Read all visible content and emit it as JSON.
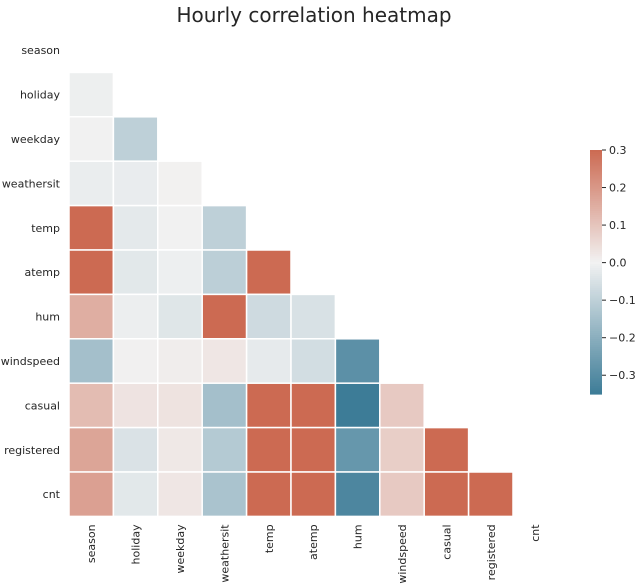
{
  "chart_data": {
    "type": "heatmap",
    "title": "Hourly correlation heatmap",
    "xlabel": "",
    "ylabel": "",
    "mask": "upper-triangle-including-diagonal",
    "categories": [
      "season",
      "holiday",
      "weekday",
      "weathersit",
      "temp",
      "atemp",
      "hum",
      "windspeed",
      "casual",
      "registered",
      "cnt"
    ],
    "values": [
      [
        null,
        null,
        null,
        null,
        null,
        null,
        null,
        null,
        null,
        null,
        null
      ],
      [
        -0.01,
        null,
        null,
        null,
        null,
        null,
        null,
        null,
        null,
        null,
        null
      ],
      [
        -0.002,
        -0.1,
        null,
        null,
        null,
        null,
        null,
        null,
        null,
        null,
        null
      ],
      [
        -0.015,
        -0.017,
        0.003,
        null,
        null,
        null,
        null,
        null,
        null,
        null,
        null
      ],
      [
        0.31,
        -0.027,
        -0.002,
        -0.1,
        null,
        null,
        null,
        null,
        null,
        null,
        null
      ],
      [
        0.32,
        -0.031,
        -0.009,
        -0.105,
        0.99,
        null,
        null,
        null,
        null,
        null,
        null
      ],
      [
        0.15,
        -0.011,
        -0.037,
        0.42,
        -0.07,
        -0.05,
        null,
        null,
        null,
        null,
        null
      ],
      [
        -0.15,
        0.004,
        0.012,
        0.026,
        -0.023,
        -0.062,
        -0.29,
        null,
        null,
        null,
        null
      ],
      [
        0.12,
        0.032,
        0.033,
        -0.15,
        0.46,
        0.45,
        -0.35,
        0.09,
        null,
        null,
        null
      ],
      [
        0.17,
        -0.047,
        0.022,
        -0.12,
        0.34,
        0.33,
        -0.27,
        0.08,
        0.51,
        null,
        null
      ],
      [
        0.18,
        -0.031,
        0.027,
        -0.14,
        0.4,
        0.4,
        -0.32,
        0.09,
        0.69,
        0.97,
        null
      ]
    ],
    "colorbar": {
      "vmin": -0.35,
      "vmax": 0.3,
      "ticks": [
        0.3,
        0.2,
        0.1,
        0.0,
        -0.1,
        -0.2,
        -0.3
      ],
      "tick_labels": [
        "0.3",
        "0.2",
        "0.1",
        "0.0",
        "−0.1",
        "−0.2",
        "−0.3"
      ]
    },
    "colors": {
      "low": "#3d7c97",
      "mid": "#f2f2f2",
      "high": "#cc6a52"
    },
    "grid": false,
    "legend": "colorbar-right"
  }
}
